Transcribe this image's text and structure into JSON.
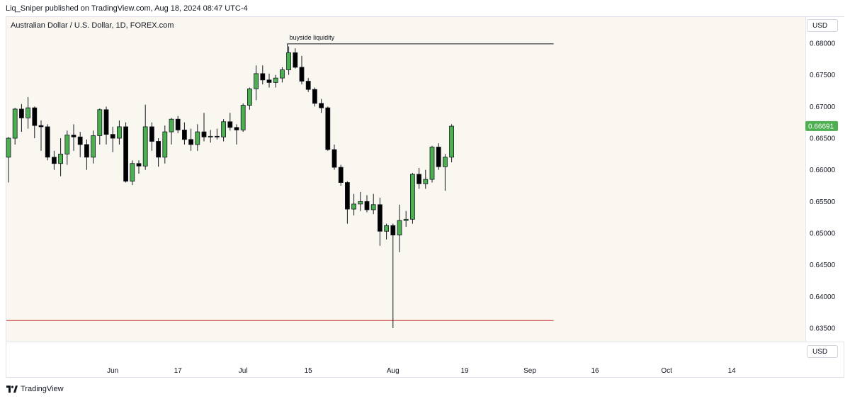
{
  "header": {
    "publish_line": "Liq_Sniper published on TradingView.com, Aug 18, 2024 08:47 UTC-4"
  },
  "symbol": {
    "title": "Australian Dollar / U.S. Dollar, 1D, FOREX.com"
  },
  "currency_button": {
    "top_label": "USD",
    "bottom_label": "USD"
  },
  "branding": {
    "logo_text": "TradingView",
    "logo_icon": "tradingview-logo-icon"
  },
  "colors": {
    "up": "#4caf50",
    "down": "#000000",
    "wick": "#131722",
    "last_price_bg": "#4caf50",
    "liquidity_line": "#cc3333",
    "plot_bg": "#faf7f0"
  },
  "chart_data": {
    "type": "candlestick",
    "title": "Australian Dollar / U.S. Dollar, 1D, FOREX.com",
    "y_ticks": [
      "0.68000",
      "0.67500",
      "0.67000",
      "0.66500",
      "0.66000",
      "0.65500",
      "0.65000",
      "0.64500",
      "0.64000",
      "0.63500"
    ],
    "ylim": [
      0.633,
      0.6812
    ],
    "x_ticks": [
      {
        "label": "Jun",
        "bar": 16
      },
      {
        "label": "17",
        "bar": 26
      },
      {
        "label": "Jul",
        "bar": 36
      },
      {
        "label": "15",
        "bar": 46
      },
      {
        "label": "Aug",
        "bar": 59
      },
      {
        "label": "19",
        "bar": 70
      },
      {
        "label": "Sep",
        "bar": 80
      },
      {
        "label": "16",
        "bar": 90
      },
      {
        "label": "Oct",
        "bar": 101
      },
      {
        "label": "14",
        "bar": 111
      }
    ],
    "candles": [
      [
        0.662,
        0.6652,
        0.658,
        0.665
      ],
      [
        0.665,
        0.6698,
        0.664,
        0.6696
      ],
      [
        0.6696,
        0.6704,
        0.666,
        0.6682
      ],
      [
        0.6682,
        0.6715,
        0.6665,
        0.6698
      ],
      [
        0.6698,
        0.67,
        0.665,
        0.667
      ],
      [
        0.667,
        0.6678,
        0.663,
        0.6668
      ],
      [
        0.6668,
        0.6672,
        0.6615,
        0.662
      ],
      [
        0.662,
        0.663,
        0.66,
        0.661
      ],
      [
        0.661,
        0.665,
        0.659,
        0.6625
      ],
      [
        0.6625,
        0.6662,
        0.6608,
        0.6655
      ],
      [
        0.6655,
        0.6672,
        0.663,
        0.6652
      ],
      [
        0.6652,
        0.666,
        0.662,
        0.664
      ],
      [
        0.664,
        0.6648,
        0.66,
        0.662
      ],
      [
        0.662,
        0.6662,
        0.661,
        0.6654
      ],
      [
        0.6654,
        0.6697,
        0.664,
        0.6695
      ],
      [
        0.6695,
        0.67,
        0.664,
        0.6656
      ],
      [
        0.6656,
        0.6668,
        0.6628,
        0.665
      ],
      [
        0.665,
        0.6678,
        0.664,
        0.6668
      ],
      [
        0.6668,
        0.6675,
        0.658,
        0.6582
      ],
      [
        0.6582,
        0.6615,
        0.6576,
        0.661
      ],
      [
        0.661,
        0.6615,
        0.6594,
        0.6606
      ],
      [
        0.6606,
        0.6703,
        0.66,
        0.6668
      ],
      [
        0.6668,
        0.6675,
        0.663,
        0.6645
      ],
      [
        0.6645,
        0.665,
        0.6605,
        0.662
      ],
      [
        0.662,
        0.667,
        0.661,
        0.666
      ],
      [
        0.666,
        0.6682,
        0.664,
        0.668
      ],
      [
        0.668,
        0.6685,
        0.6658,
        0.6663
      ],
      [
        0.6663,
        0.6675,
        0.664,
        0.6648
      ],
      [
        0.6648,
        0.6665,
        0.663,
        0.664
      ],
      [
        0.664,
        0.6672,
        0.663,
        0.666
      ],
      [
        0.666,
        0.669,
        0.6645,
        0.6652
      ],
      [
        0.6652,
        0.6663,
        0.6643,
        0.6653
      ],
      [
        0.6653,
        0.6665,
        0.6648,
        0.6652
      ],
      [
        0.6652,
        0.668,
        0.6645,
        0.6676
      ],
      [
        0.6676,
        0.669,
        0.6662,
        0.6667
      ],
      [
        0.6667,
        0.6672,
        0.664,
        0.6663
      ],
      [
        0.6663,
        0.6705,
        0.666,
        0.6702
      ],
      [
        0.6702,
        0.673,
        0.6695,
        0.6728
      ],
      [
        0.6728,
        0.6765,
        0.671,
        0.6752
      ],
      [
        0.6752,
        0.6765,
        0.6735,
        0.6742
      ],
      [
        0.6742,
        0.6752,
        0.673,
        0.6738
      ],
      [
        0.6738,
        0.675,
        0.673,
        0.6745
      ],
      [
        0.6745,
        0.6762,
        0.6738,
        0.6758
      ],
      [
        0.6758,
        0.6795,
        0.675,
        0.6785
      ],
      [
        0.6785,
        0.6792,
        0.676,
        0.6762
      ],
      [
        0.6762,
        0.678,
        0.6735,
        0.674
      ],
      [
        0.674,
        0.6745,
        0.6723,
        0.6727
      ],
      [
        0.6727,
        0.673,
        0.67,
        0.6705
      ],
      [
        0.6705,
        0.6712,
        0.669,
        0.6698
      ],
      [
        0.6698,
        0.67,
        0.663,
        0.6632
      ],
      [
        0.6632,
        0.664,
        0.66,
        0.6604
      ],
      [
        0.6604,
        0.6608,
        0.6575,
        0.658
      ],
      [
        0.658,
        0.6582,
        0.6515,
        0.6538
      ],
      [
        0.6538,
        0.6562,
        0.6528,
        0.6546
      ],
      [
        0.6546,
        0.6565,
        0.6535,
        0.655
      ],
      [
        0.655,
        0.656,
        0.6533,
        0.6537
      ],
      [
        0.6537,
        0.6562,
        0.653,
        0.6545
      ],
      [
        0.6545,
        0.6556,
        0.648,
        0.6503
      ],
      [
        0.6503,
        0.6515,
        0.649,
        0.6512
      ],
      [
        0.6512,
        0.6515,
        0.635,
        0.6497
      ],
      [
        0.6497,
        0.6545,
        0.647,
        0.652
      ],
      [
        0.652,
        0.6535,
        0.651,
        0.6522
      ],
      [
        0.6522,
        0.6595,
        0.6515,
        0.6593
      ],
      [
        0.6593,
        0.6603,
        0.657,
        0.6578
      ],
      [
        0.6578,
        0.66,
        0.657,
        0.6585
      ],
      [
        0.6585,
        0.6638,
        0.658,
        0.6636
      ],
      [
        0.6636,
        0.6642,
        0.66,
        0.6605
      ],
      [
        0.6605,
        0.6625,
        0.6567,
        0.662
      ],
      [
        0.662,
        0.6672,
        0.6612,
        0.6669
      ]
    ],
    "last_price": {
      "value": 0.66691,
      "label": "0.66691"
    },
    "annotations": [
      {
        "type": "horizontal_segment",
        "text": "buyside liquidity",
        "price": 0.6799,
        "from_bar": 43,
        "to_bar": 83
      },
      {
        "type": "horizontal_segment",
        "text": "",
        "price": 0.6362,
        "from_bar": 0,
        "to_bar": 83
      }
    ]
  }
}
